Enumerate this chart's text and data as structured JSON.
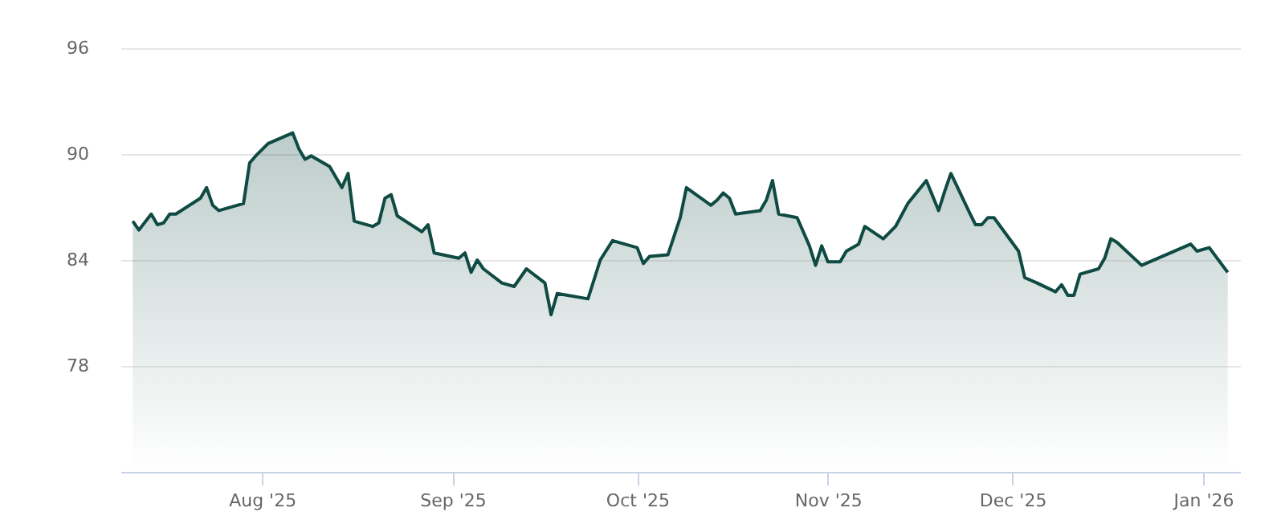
{
  "chart_data": {
    "type": "area",
    "x": [
      "2025-07-11",
      "2025-07-12",
      "2025-07-14",
      "2025-07-15",
      "2025-07-16",
      "2025-07-17",
      "2025-07-18",
      "2025-07-22",
      "2025-07-23",
      "2025-07-24",
      "2025-07-25",
      "2025-07-29",
      "2025-07-30",
      "2025-07-31",
      "2025-08-02",
      "2025-08-06",
      "2025-08-07",
      "2025-08-08",
      "2025-08-09",
      "2025-08-12",
      "2025-08-14",
      "2025-08-15",
      "2025-08-16",
      "2025-08-19",
      "2025-08-20",
      "2025-08-21",
      "2025-08-22",
      "2025-08-23",
      "2025-08-27",
      "2025-08-28",
      "2025-08-29",
      "2025-09-02",
      "2025-09-03",
      "2025-09-04",
      "2025-09-05",
      "2025-09-06",
      "2025-09-09",
      "2025-09-11",
      "2025-09-12",
      "2025-09-13",
      "2025-09-16",
      "2025-09-17",
      "2025-09-18",
      "2025-09-23",
      "2025-09-25",
      "2025-09-27",
      "2025-10-01",
      "2025-10-02",
      "2025-10-03",
      "2025-10-06",
      "2025-10-08",
      "2025-10-09",
      "2025-10-13",
      "2025-10-14",
      "2025-10-15",
      "2025-10-16",
      "2025-10-17",
      "2025-10-21",
      "2025-10-22",
      "2025-10-23",
      "2025-10-24",
      "2025-10-27",
      "2025-10-29",
      "2025-10-30",
      "2025-10-31",
      "2025-11-01",
      "2025-11-03",
      "2025-11-04",
      "2025-11-06",
      "2025-11-07",
      "2025-11-10",
      "2025-11-12",
      "2025-11-14",
      "2025-11-17",
      "2025-11-19",
      "2025-11-20",
      "2025-11-21",
      "2025-11-24",
      "2025-11-25",
      "2025-11-26",
      "2025-11-27",
      "2025-11-28",
      "2025-12-02",
      "2025-12-03",
      "2025-12-05",
      "2025-12-08",
      "2025-12-09",
      "2025-12-10",
      "2025-12-11",
      "2025-12-12",
      "2025-12-15",
      "2025-12-16",
      "2025-12-17",
      "2025-12-18",
      "2025-12-22",
      "2025-12-30",
      "2025-12-31",
      "2026-01-02",
      "2026-01-05"
    ],
    "series": [
      {
        "color": "#0f4a43",
        "values": [
          86.2,
          85.7,
          86.6,
          86.0,
          86.1,
          86.6,
          86.6,
          87.5,
          88.1,
          87.1,
          86.8,
          87.2,
          89.5,
          89.9,
          90.6,
          91.2,
          90.3,
          89.7,
          89.9,
          89.3,
          88.1,
          88.9,
          86.2,
          85.9,
          86.1,
          87.5,
          87.7,
          86.5,
          85.6,
          86.0,
          84.4,
          84.1,
          84.4,
          83.3,
          84.0,
          83.5,
          82.7,
          82.5,
          83.0,
          83.5,
          82.7,
          80.9,
          82.1,
          81.8,
          84.0,
          85.1,
          84.7,
          83.8,
          84.2,
          84.3,
          86.4,
          88.1,
          87.1,
          87.4,
          87.8,
          87.5,
          86.6,
          86.8,
          87.4,
          88.5,
          86.6,
          86.4,
          84.8,
          83.7,
          84.8,
          83.9,
          83.9,
          84.5,
          84.9,
          85.9,
          85.2,
          85.9,
          87.2,
          88.5,
          86.8,
          87.9,
          88.9,
          86.7,
          86.0,
          86.0,
          86.4,
          86.4,
          84.5,
          83.0,
          82.7,
          82.2,
          82.6,
          82.0,
          82.0,
          83.2,
          83.5,
          84.1,
          85.2,
          85.0,
          83.7,
          84.9,
          84.5,
          84.7,
          83.3
        ]
      }
    ],
    "xlim": [
      "2025-07-09",
      "2026-01-07"
    ],
    "xticks": [
      {
        "value": "2025-08-01",
        "label": "Aug '25"
      },
      {
        "value": "2025-09-01",
        "label": "Sep '25"
      },
      {
        "value": "2025-10-01",
        "label": "Oct '25"
      },
      {
        "value": "2025-11-01",
        "label": "Nov '25"
      },
      {
        "value": "2025-12-01",
        "label": "Dec '25"
      },
      {
        "value": "2026-01-01",
        "label": "Jan '26"
      }
    ],
    "ylim": [
      72,
      96
    ],
    "yticks": [
      78,
      84,
      90,
      96
    ],
    "grid": "y"
  }
}
